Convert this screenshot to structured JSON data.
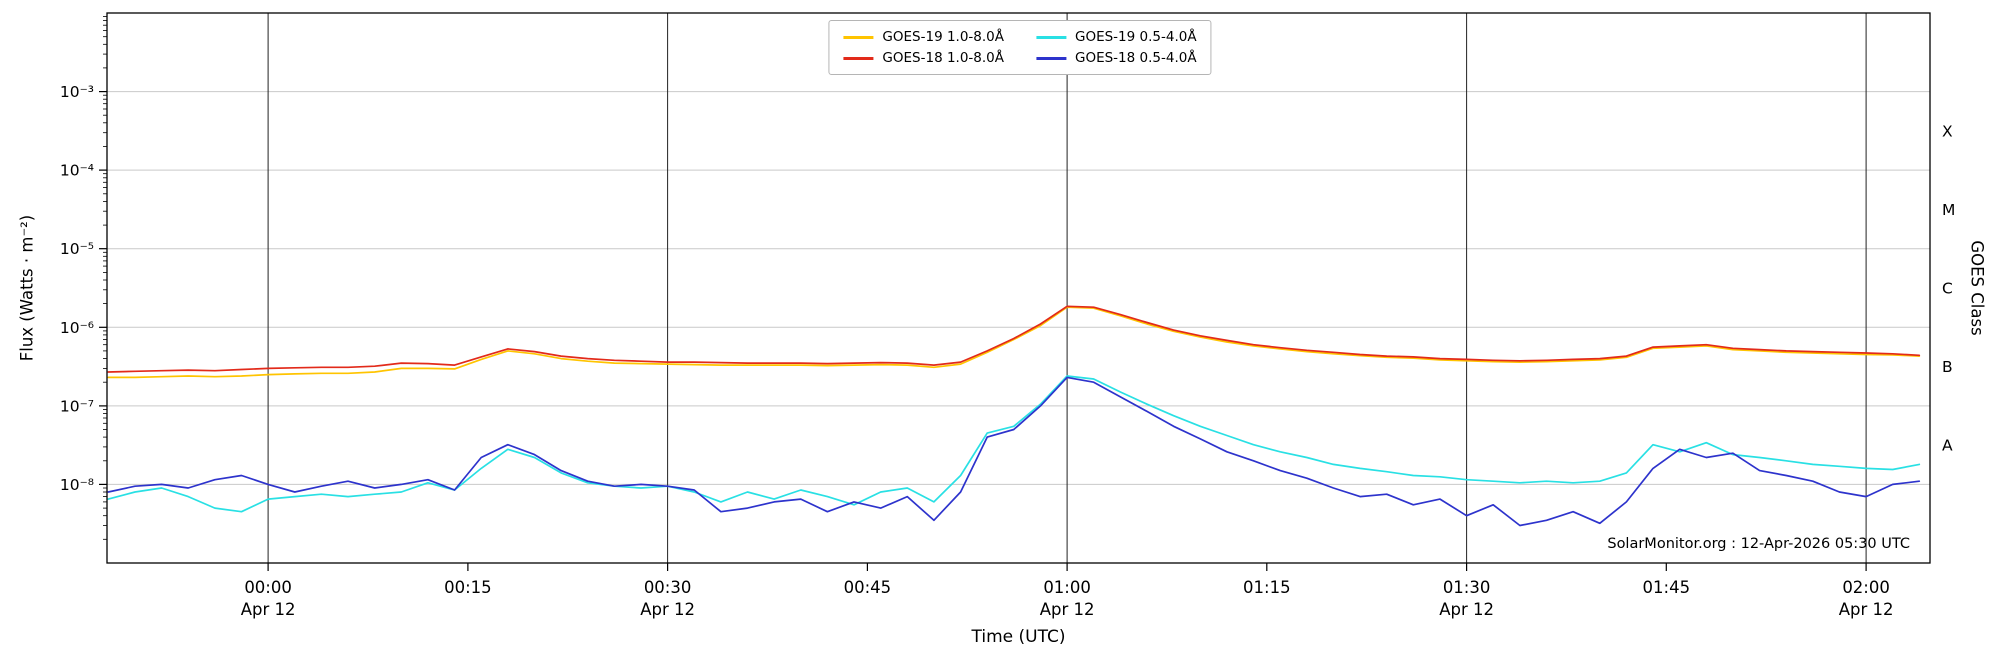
{
  "figure": {
    "xlabel": "Time (UTC)",
    "ylabel": "Flux (Watts · m⁻²)",
    "ylabel_right": "GOES Class",
    "watermark": "SolarMonitor.org : 12-Apr-2026 05:30 UTC"
  },
  "chart_data": {
    "type": "line",
    "title": "",
    "xlabel": "Time (UTC)",
    "ylabel": "Flux (Watts · m⁻²)",
    "x_unit": "minutes relative to 00:00 UTC on Apr 12",
    "x_range": [
      -12.1,
      124.8
    ],
    "ylog_range": [
      -9,
      -2
    ],
    "grid": {
      "horizontal_color": "#c9c9c9",
      "vertical_color": "#222222"
    },
    "x_ticks": [
      {
        "t": 0,
        "label": "00:00",
        "sub": "Apr 12"
      },
      {
        "t": 15,
        "label": "00:15"
      },
      {
        "t": 30,
        "label": "00:30",
        "sub": "Apr 12"
      },
      {
        "t": 45,
        "label": "00:45"
      },
      {
        "t": 60,
        "label": "01:00",
        "sub": "Apr 12"
      },
      {
        "t": 75,
        "label": "01:15"
      },
      {
        "t": 90,
        "label": "01:30",
        "sub": "Apr 12"
      },
      {
        "t": 105,
        "label": "01:45"
      },
      {
        "t": 120,
        "label": "02:00",
        "sub": "Apr 12"
      }
    ],
    "x_gridlines": [
      0,
      30,
      60,
      90,
      120
    ],
    "y_ticks": [
      {
        "exp": -3,
        "label": "10⁻³"
      },
      {
        "exp": -4,
        "label": "10⁻⁴"
      },
      {
        "exp": -5,
        "label": "10⁻⁵"
      },
      {
        "exp": -6,
        "label": "10⁻⁶"
      },
      {
        "exp": -7,
        "label": "10⁻⁷"
      },
      {
        "exp": -8,
        "label": "10⁻⁸"
      }
    ],
    "goes_classes": [
      {
        "label": "X",
        "log": -3.5
      },
      {
        "label": "M",
        "log": -4.5
      },
      {
        "label": "C",
        "log": -5.5
      },
      {
        "label": "B",
        "log": -6.5
      },
      {
        "label": "A",
        "log": -7.5
      }
    ],
    "legend": [
      {
        "label": "GOES-19 1.0-8.0Å",
        "color": "#ffc400"
      },
      {
        "label": "GOES-19 0.5-4.0Å",
        "color": "#29e0e4"
      },
      {
        "label": "GOES-18 1.0-8.0Å",
        "color": "#e22a1a"
      },
      {
        "label": "GOES-18 0.5-4.0Å",
        "color": "#2d33cc"
      }
    ],
    "series": [
      {
        "id": "goes19-long",
        "name": "GOES-19 1.0-8.0Å",
        "color": "#ffc400",
        "x": [
          -12,
          -10,
          -8,
          -6,
          -4,
          -2,
          0,
          2,
          4,
          6,
          8,
          10,
          12,
          14,
          16,
          18,
          20,
          22,
          24,
          26,
          28,
          30,
          32,
          34,
          36,
          38,
          40,
          42,
          44,
          46,
          48,
          50,
          52,
          54,
          56,
          58,
          60,
          62,
          64,
          66,
          68,
          70,
          72,
          74,
          76,
          78,
          80,
          82,
          84,
          86,
          88,
          90,
          92,
          94,
          96,
          98,
          100,
          102,
          104,
          106,
          108,
          110,
          112,
          114,
          116,
          118,
          120,
          122,
          124
        ],
        "y": [
          2.3e-07,
          2.3e-07,
          2.35e-07,
          2.4e-07,
          2.35e-07,
          2.4e-07,
          2.5e-07,
          2.55e-07,
          2.6e-07,
          2.6e-07,
          2.7e-07,
          3e-07,
          3e-07,
          2.95e-07,
          3.9e-07,
          5e-07,
          4.6e-07,
          4e-07,
          3.7e-07,
          3.5e-07,
          3.45e-07,
          3.4e-07,
          3.35e-07,
          3.3e-07,
          3.3e-07,
          3.3e-07,
          3.3e-07,
          3.25e-07,
          3.3e-07,
          3.35e-07,
          3.3e-07,
          3.1e-07,
          3.4e-07,
          4.8e-07,
          7e-07,
          1.05e-06,
          1.8e-06,
          1.75e-06,
          1.4e-06,
          1.1e-06,
          8.9e-07,
          7.5e-07,
          6.5e-07,
          5.8e-07,
          5.3e-07,
          4.9e-07,
          4.6e-07,
          4.35e-07,
          4.15e-07,
          4.05e-07,
          3.85e-07,
          3.75e-07,
          3.65e-07,
          3.6e-07,
          3.65e-07,
          3.75e-07,
          3.85e-07,
          4.15e-07,
          5.4e-07,
          5.6e-07,
          5.8e-07,
          5.2e-07,
          5e-07,
          4.8e-07,
          4.7e-07,
          4.6e-07,
          4.5e-07,
          4.45e-07,
          4.3e-07
        ]
      },
      {
        "id": "goes18-long",
        "name": "GOES-18 1.0-8.0Å",
        "color": "#e22a1a",
        "x": [
          -12,
          -10,
          -8,
          -6,
          -4,
          -2,
          0,
          2,
          4,
          6,
          8,
          10,
          12,
          14,
          16,
          18,
          20,
          22,
          24,
          26,
          28,
          30,
          32,
          34,
          36,
          38,
          40,
          42,
          44,
          46,
          48,
          50,
          52,
          54,
          56,
          58,
          60,
          62,
          64,
          66,
          68,
          70,
          72,
          74,
          76,
          78,
          80,
          82,
          84,
          86,
          88,
          90,
          92,
          94,
          96,
          98,
          100,
          102,
          104,
          106,
          108,
          110,
          112,
          114,
          116,
          118,
          120,
          122,
          124
        ],
        "y": [
          2.7e-07,
          2.75e-07,
          2.8e-07,
          2.85e-07,
          2.8e-07,
          2.9e-07,
          3e-07,
          3.05e-07,
          3.1e-07,
          3.1e-07,
          3.2e-07,
          3.5e-07,
          3.45e-07,
          3.3e-07,
          4.2e-07,
          5.3e-07,
          4.9e-07,
          4.3e-07,
          4e-07,
          3.8e-07,
          3.7e-07,
          3.6e-07,
          3.6e-07,
          3.55e-07,
          3.5e-07,
          3.5e-07,
          3.5e-07,
          3.45e-07,
          3.5e-07,
          3.55e-07,
          3.5e-07,
          3.3e-07,
          3.6e-07,
          5e-07,
          7.2e-07,
          1.1e-06,
          1.85e-06,
          1.8e-06,
          1.45e-06,
          1.15e-06,
          9.2e-07,
          7.8e-07,
          6.8e-07,
          6e-07,
          5.5e-07,
          5.1e-07,
          4.8e-07,
          4.5e-07,
          4.3e-07,
          4.2e-07,
          4e-07,
          3.9e-07,
          3.8e-07,
          3.75e-07,
          3.8e-07,
          3.9e-07,
          4e-07,
          4.3e-07,
          5.6e-07,
          5.8e-07,
          6e-07,
          5.4e-07,
          5.2e-07,
          5e-07,
          4.9e-07,
          4.8e-07,
          4.7e-07,
          4.6e-07,
          4.4e-07
        ]
      },
      {
        "id": "goes19-short",
        "name": "GOES-19 0.5-4.0Å",
        "color": "#29e0e4",
        "x": [
          -12,
          -10,
          -8,
          -6,
          -4,
          -2,
          0,
          2,
          4,
          6,
          8,
          10,
          12,
          14,
          16,
          18,
          20,
          22,
          24,
          26,
          28,
          30,
          32,
          34,
          36,
          38,
          40,
          42,
          44,
          46,
          48,
          50,
          52,
          54,
          56,
          58,
          60,
          62,
          64,
          66,
          68,
          70,
          72,
          74,
          76,
          78,
          80,
          82,
          84,
          86,
          88,
          90,
          92,
          94,
          96,
          98,
          100,
          102,
          104,
          106,
          108,
          110,
          112,
          114,
          116,
          118,
          120,
          122,
          124
        ],
        "y": [
          6.5e-09,
          8e-09,
          9e-09,
          7e-09,
          5e-09,
          4.5e-09,
          6.5e-09,
          7e-09,
          7.5e-09,
          7e-09,
          7.5e-09,
          8e-09,
          1.05e-08,
          8.5e-09,
          1.6e-08,
          2.8e-08,
          2.2e-08,
          1.4e-08,
          1.05e-08,
          9.5e-09,
          9e-09,
          9.5e-09,
          8e-09,
          6e-09,
          8e-09,
          6.5e-09,
          8.5e-09,
          7e-09,
          5.5e-09,
          8e-09,
          9e-09,
          6e-09,
          1.3e-08,
          4.5e-08,
          5.5e-08,
          1.05e-07,
          2.4e-07,
          2.2e-07,
          1.5e-07,
          1.05e-07,
          7.5e-08,
          5.5e-08,
          4.2e-08,
          3.2e-08,
          2.6e-08,
          2.2e-08,
          1.8e-08,
          1.6e-08,
          1.45e-08,
          1.3e-08,
          1.25e-08,
          1.15e-08,
          1.1e-08,
          1.05e-08,
          1.1e-08,
          1.05e-08,
          1.1e-08,
          1.4e-08,
          3.2e-08,
          2.6e-08,
          3.4e-08,
          2.4e-08,
          2.2e-08,
          2e-08,
          1.8e-08,
          1.7e-08,
          1.6e-08,
          1.55e-08,
          1.8e-08
        ]
      },
      {
        "id": "goes18-short",
        "name": "GOES-18 0.5-4.0Å",
        "color": "#2d33cc",
        "x": [
          -12,
          -10,
          -8,
          -6,
          -4,
          -2,
          0,
          2,
          4,
          6,
          8,
          10,
          12,
          14,
          16,
          18,
          20,
          22,
          24,
          26,
          28,
          30,
          32,
          34,
          36,
          38,
          40,
          42,
          44,
          46,
          48,
          50,
          52,
          54,
          56,
          58,
          60,
          62,
          64,
          66,
          68,
          70,
          72,
          74,
          76,
          78,
          80,
          82,
          84,
          86,
          88,
          90,
          92,
          94,
          96,
          98,
          100,
          102,
          104,
          106,
          108,
          110,
          112,
          114,
          116,
          118,
          120,
          122,
          124
        ],
        "y": [
          8e-09,
          9.5e-09,
          1e-08,
          9e-09,
          1.15e-08,
          1.3e-08,
          1e-08,
          8e-09,
          9.5e-09,
          1.1e-08,
          9e-09,
          1e-08,
          1.15e-08,
          8.5e-09,
          2.2e-08,
          3.2e-08,
          2.4e-08,
          1.5e-08,
          1.1e-08,
          9.5e-09,
          1e-08,
          9.5e-09,
          8.5e-09,
          4.5e-09,
          5e-09,
          6e-09,
          6.5e-09,
          4.5e-09,
          6e-09,
          5e-09,
          7e-09,
          3.5e-09,
          8e-09,
          4e-08,
          5e-08,
          1e-07,
          2.3e-07,
          2e-07,
          1.3e-07,
          8.5e-08,
          5.5e-08,
          3.8e-08,
          2.6e-08,
          2e-08,
          1.5e-08,
          1.2e-08,
          9e-09,
          7e-09,
          7.5e-09,
          5.5e-09,
          6.5e-09,
          4e-09,
          5.5e-09,
          3e-09,
          3.5e-09,
          4.5e-09,
          3.2e-09,
          6e-09,
          1.6e-08,
          2.8e-08,
          2.2e-08,
          2.5e-08,
          1.5e-08,
          1.3e-08,
          1.1e-08,
          8e-09,
          7e-09,
          1e-08,
          1.1e-08
        ]
      }
    ]
  }
}
